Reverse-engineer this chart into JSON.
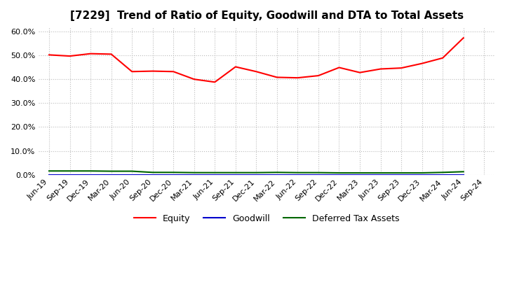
{
  "title": "[7229]  Trend of Ratio of Equity, Goodwill and DTA to Total Assets",
  "labels": [
    "Jun-19",
    "Sep-19",
    "Dec-19",
    "Mar-20",
    "Jun-20",
    "Sep-20",
    "Dec-20",
    "Mar-21",
    "Jun-21",
    "Sep-21",
    "Dec-21",
    "Mar-22",
    "Jun-22",
    "Sep-22",
    "Dec-22",
    "Mar-23",
    "Jun-23",
    "Sep-23",
    "Dec-23",
    "Mar-24",
    "Jun-24",
    "Sep-24"
  ],
  "equity": [
    0.502,
    0.497,
    0.507,
    0.505,
    0.432,
    0.434,
    0.432,
    0.4,
    0.388,
    0.452,
    0.432,
    0.408,
    0.406,
    0.415,
    0.449,
    0.428,
    0.443,
    0.447,
    0.466,
    0.489,
    0.573,
    null
  ],
  "goodwill": [
    0.0,
    0.0,
    0.0,
    0.0,
    0.0,
    0.0,
    0.0,
    0.0,
    0.0,
    0.0,
    0.0,
    0.0,
    0.0,
    0.0,
    0.0,
    0.0,
    0.0,
    0.0,
    0.0,
    0.0,
    0.0,
    null
  ],
  "dta": [
    0.016,
    0.016,
    0.016,
    0.015,
    0.015,
    0.01,
    0.01,
    0.009,
    0.009,
    0.009,
    0.009,
    0.01,
    0.009,
    0.009,
    0.008,
    0.008,
    0.008,
    0.008,
    0.008,
    0.01,
    0.013,
    null
  ],
  "equity_color": "#ff0000",
  "goodwill_color": "#0000cc",
  "dta_color": "#006600",
  "ylim": [
    0.0,
    0.62
  ],
  "yticks": [
    0.0,
    0.1,
    0.2,
    0.3,
    0.4,
    0.5,
    0.6
  ],
  "background_color": "#ffffff",
  "grid_color": "#bbbbbb",
  "title_fontsize": 11,
  "tick_fontsize": 8,
  "legend_fontsize": 9
}
